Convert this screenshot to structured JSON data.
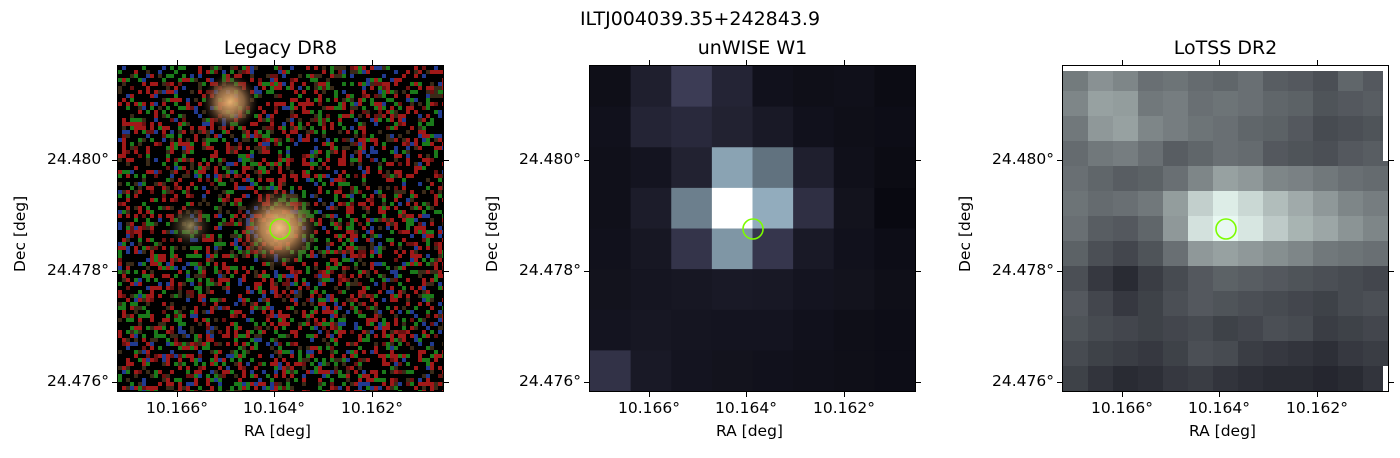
{
  "figure": {
    "title": "ILTJ004039.35+242843.9"
  },
  "panels": [
    {
      "title": "Legacy DR8",
      "xlabel": "RA [deg]",
      "ylabel": "Dec [deg]",
      "xticks": [
        "10.166°",
        "10.164°",
        "10.162°"
      ],
      "yticks": [
        "24.480°",
        "24.478°",
        "24.476°"
      ]
    },
    {
      "title": "unWISE W1",
      "xlabel": "RA [deg]",
      "ylabel": "Dec [deg]",
      "xticks": [
        "10.166°",
        "10.164°",
        "10.162°"
      ],
      "yticks": [
        "24.480°",
        "24.478°",
        "24.476°"
      ]
    },
    {
      "title": "LoTSS DR2",
      "xlabel": "RA [deg]",
      "ylabel": "Dec [deg]",
      "xticks": [
        "10.166°",
        "10.164°",
        "10.162°"
      ],
      "yticks": [
        "24.480°",
        "24.478°",
        "24.476°"
      ]
    }
  ],
  "marker_color": "#7cfc00",
  "colors": {
    "legacy_source": "#c9a060",
    "wise_peak": "#ffffff",
    "lotss_peak": "#e8f4f4"
  }
}
